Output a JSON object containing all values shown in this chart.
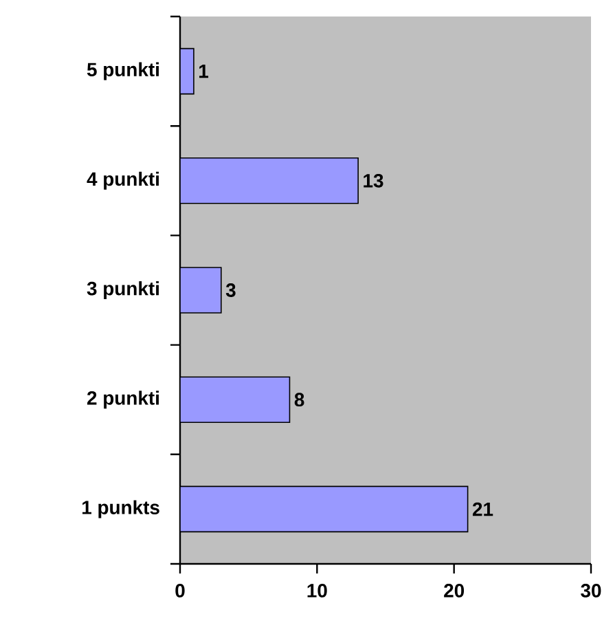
{
  "chart_data": {
    "type": "bar",
    "orientation": "horizontal",
    "categories": [
      "5 punkti",
      "4 punkti",
      "3 punkti",
      "2 punkti",
      "1 punkts"
    ],
    "values": [
      1,
      13,
      3,
      8,
      21
    ],
    "color": "#9999ff",
    "xlim": [
      0,
      30
    ],
    "xticks": [
      0,
      10,
      20,
      30
    ],
    "data_labels": true
  }
}
